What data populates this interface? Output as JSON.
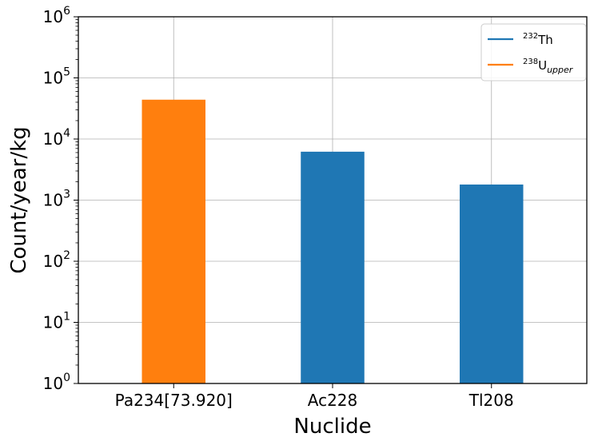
{
  "chart_data": {
    "type": "bar",
    "title": "",
    "xlabel": "Nuclide",
    "ylabel": "Count/year/kg",
    "yscale": "log",
    "ylim": [
      1,
      1000000
    ],
    "y_tick_labels": [
      {
        "base": "10",
        "exp": "0"
      },
      {
        "base": "10",
        "exp": "1"
      },
      {
        "base": "10",
        "exp": "2"
      },
      {
        "base": "10",
        "exp": "3"
      },
      {
        "base": "10",
        "exp": "4"
      },
      {
        "base": "10",
        "exp": "5"
      },
      {
        "base": "10",
        "exp": "6"
      }
    ],
    "categories": [
      "Pa234[73.920]",
      "Ac228",
      "Tl208"
    ],
    "bars": [
      {
        "category": "Pa234[73.920]",
        "value": 44000,
        "series": "238U_upper"
      },
      {
        "category": "Ac228",
        "value": 6200,
        "series": "232Th"
      },
      {
        "category": "Tl208",
        "value": 1800,
        "series": "232Th"
      }
    ],
    "series": [
      {
        "key": "232Th",
        "color": "#1f77b4",
        "sup": "232",
        "main": "Th",
        "sub": ""
      },
      {
        "key": "238U_upper",
        "color": "#ff7f0e",
        "sup": "238",
        "main": "U",
        "sub": "upper"
      }
    ],
    "grid": true,
    "legend_position": "top-right"
  }
}
